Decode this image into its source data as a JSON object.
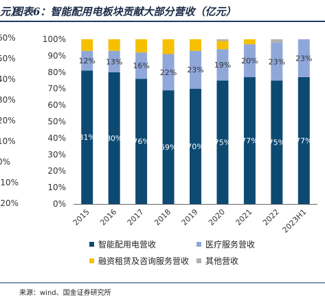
{
  "header": {
    "left_fragment": "元）",
    "title": "图表6：智能配用电板块贡献大部分营收（亿元）"
  },
  "left_axis_fragment": [
    "60%",
    "50%",
    "40%",
    "30%",
    "20%",
    "10%",
    "0%",
    "-10%",
    "-20%"
  ],
  "source": "来源：wind、国金证券研究所",
  "colors": {
    "smart": "#0d4a72",
    "medical": "#8fa7d9",
    "finance": "#f6c000",
    "other": "#b0b0b0",
    "rule": "#1b3a6b"
  },
  "chart_data": {
    "type": "bar",
    "stacked": true,
    "categories": [
      "2015",
      "2016",
      "2017",
      "2018",
      "2019",
      "2020",
      "2021",
      "2022",
      "2023H1"
    ],
    "series": [
      {
        "name": "智能配用电营收",
        "values": [
          81,
          80,
          76,
          69,
          70,
          75,
          77,
          75,
          77
        ],
        "labels": [
          "81%",
          "80%",
          "76%",
          "69%",
          "70%",
          "75%",
          "77%",
          "75%",
          "77%"
        ]
      },
      {
        "name": "医疗服务营收",
        "values": [
          12,
          13,
          16,
          22,
          23,
          19,
          20,
          23,
          23
        ],
        "labels": [
          "12%",
          "13%",
          "16%",
          "22%",
          "23%",
          "19%",
          "20%",
          "23%",
          "23%"
        ]
      },
      {
        "name": "融资租赁及咨询服务营收",
        "values": [
          7,
          7,
          8,
          9,
          7,
          5,
          3,
          0,
          0
        ]
      },
      {
        "name": "其他营收",
        "values": [
          0,
          0,
          0,
          0,
          0,
          1,
          0,
          2,
          0
        ]
      }
    ],
    "y_ticks": [
      "0%",
      "10%",
      "20%",
      "30%",
      "40%",
      "50%",
      "60%",
      "70%",
      "80%",
      "90%",
      "100%"
    ],
    "ylim": [
      0,
      100
    ],
    "grid": false,
    "legend_position": "bottom"
  }
}
